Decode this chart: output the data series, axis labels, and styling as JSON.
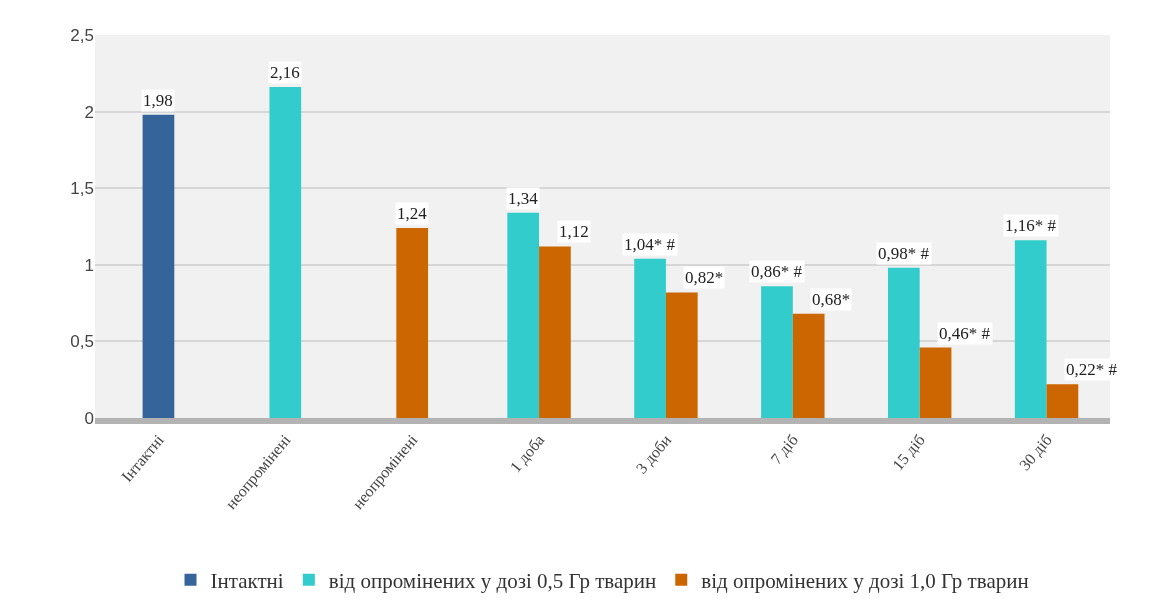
{
  "chart_data": {
    "type": "bar",
    "categories": [
      "Інтактні",
      "неопромінені",
      "неопромінені",
      "1 доба",
      "3 доби",
      "7 діб",
      "15 діб",
      "30 діб"
    ],
    "series": [
      {
        "name": "Інтактні",
        "color": "#35649a",
        "values": [
          1.98,
          null,
          null,
          null,
          null,
          null,
          null,
          null
        ],
        "value_labels": [
          "1,98",
          null,
          null,
          null,
          null,
          null,
          null,
          null
        ]
      },
      {
        "name": "від опромінених у дозі 0,5 Гр тварин",
        "color": "#33cccc",
        "values": [
          null,
          2.16,
          null,
          1.34,
          1.04,
          0.86,
          0.98,
          1.16
        ],
        "value_labels": [
          null,
          "2,16",
          null,
          "1,34",
          "1,04* #",
          "0,86* #",
          "0,98* #",
          "1,16* #"
        ]
      },
      {
        "name": "від опромінених у дозі 1,0 Гр тварин",
        "color": "#cc6600",
        "values": [
          null,
          null,
          1.24,
          1.12,
          0.82,
          0.68,
          0.46,
          0.22
        ],
        "value_labels": [
          null,
          null,
          "1,24",
          "1,12",
          "0,82*",
          "0,68*",
          "0,46* #",
          "0,22* #"
        ]
      }
    ],
    "ylim": [
      0,
      2.5
    ],
    "yticks": [
      0,
      {
        "value": 0.5,
        "label": "0,5"
      },
      1,
      {
        "value": 1.5,
        "label": "1,5"
      },
      2,
      {
        "value": 2.5,
        "label": "2,5"
      }
    ],
    "grid": "y",
    "legend": "bottom"
  }
}
